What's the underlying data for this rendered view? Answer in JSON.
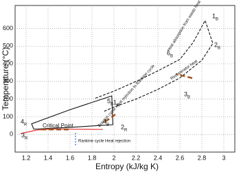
{
  "chart_data": {
    "type": "line",
    "x_label": "Entropy (kJ/kg K)",
    "y_label": "Temperature (°C)",
    "xlim": [
      1.1,
      3.1
    ],
    "ylim": [
      -100,
      730
    ],
    "xticks": [
      1.2,
      1.4,
      1.6,
      1.8,
      2,
      2.2,
      2.4,
      2.6,
      2.8,
      3
    ],
    "yticks": [
      0,
      100,
      200,
      300,
      400,
      500,
      600
    ],
    "grid": true,
    "series": [
      {
        "color": "#111111",
        "dash": true,
        "x": [
          1.83,
          2.0,
          2.2,
          2.4,
          2.6,
          2.72,
          2.83,
          2.9,
          2.8,
          2.6,
          2.4,
          2.2,
          2.0,
          1.9
        ],
        "values": [
          205,
          245,
          300,
          360,
          425,
          520,
          645,
          515,
          420,
          320,
          255,
          200,
          155,
          128
        ]
      },
      {
        "color": "#111111",
        "dash": false,
        "x": [
          1.27,
          1.25,
          1.6,
          1.98,
          1.99,
          1.6,
          1.27
        ],
        "values": [
          30,
          60,
          140,
          218,
          55,
          40,
          30
        ]
      },
      {
        "color": "#e02020",
        "dash": false,
        "x": [
          1.15,
          1.3,
          1.45,
          1.6,
          1.75,
          1.9
        ],
        "values": [
          5,
          25,
          31,
          30,
          29,
          28
        ]
      }
    ],
    "point_labels": [
      {
        "text": "1",
        "sub": "B"
      },
      {
        "text": "2",
        "sub": "B"
      },
      {
        "text": "3",
        "sub": "B"
      },
      {
        "text": "4",
        "sub": "B"
      },
      {
        "text": "5",
        "sub": "B"
      },
      {
        "text": "6",
        "sub": "B"
      },
      {
        "text": "1",
        "sub": "R"
      },
      {
        "text": "2",
        "sub": "R"
      },
      {
        "text": "3",
        "sub": "R"
      },
      {
        "text": "4",
        "sub": "R"
      }
    ],
    "annotations": [
      "Heat absorption from waste heat",
      "Recuperator heat",
      "Brayton cycle Heat rejection to Rankine cycle",
      "Critical Point",
      "Rankine cycle Heat rejection"
    ]
  }
}
